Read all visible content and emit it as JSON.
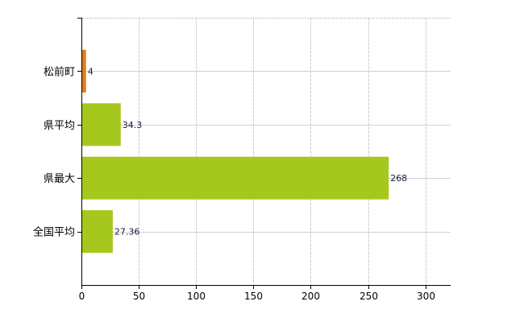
{
  "chart_data": {
    "type": "bar",
    "orientation": "horizontal",
    "categories": [
      "松前町",
      "県平均",
      "県最大",
      "全国平均"
    ],
    "values": [
      4,
      34.3,
      268,
      27.36
    ],
    "data_labels": [
      "4",
      "34.3",
      "268",
      "27.36"
    ],
    "colors": [
      "#e07c1c",
      "#a6c81e",
      "#a6c81e",
      "#a6c81e"
    ],
    "xlim": [
      0,
      322
    ],
    "xticks": [
      0,
      50,
      100,
      150,
      200,
      250,
      300
    ],
    "grid": true,
    "title": "",
    "xlabel": "",
    "ylabel": ""
  }
}
